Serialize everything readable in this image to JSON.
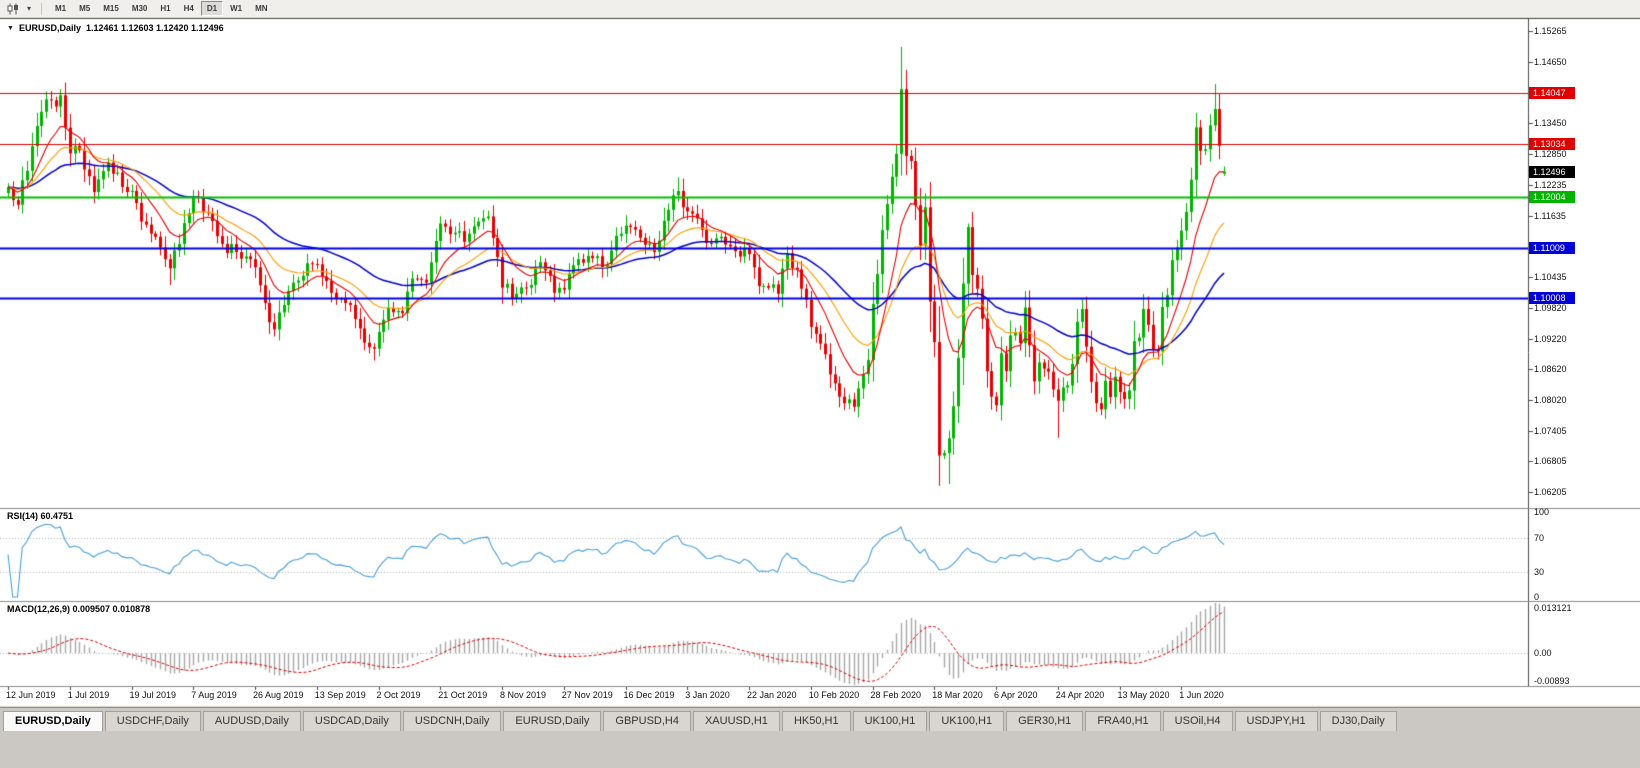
{
  "toolbar": {
    "timeframes": [
      {
        "label": "M1"
      },
      {
        "label": "M5"
      },
      {
        "label": "M15"
      },
      {
        "label": "M30"
      },
      {
        "label": "H1"
      },
      {
        "label": "H4"
      },
      {
        "label": "D1",
        "active": true
      },
      {
        "label": "W1"
      },
      {
        "label": "MN"
      }
    ]
  },
  "chart": {
    "title": {
      "collapse_icon": "▼",
      "symbol": "EURUSD,Daily",
      "ohlc": "1.12461 1.12603 1.12420 1.12496"
    },
    "colors": {
      "bull": "#00b400",
      "bear": "#e60000",
      "macd_hist": "#a8a8a8",
      "macd_signal": "#e00000"
    },
    "scale": {
      "top": 1.155,
      "bottom": 1.0591,
      "ticks": [
        "1.15265",
        "1.14650",
        "1.13450",
        "1.12850",
        "1.12235",
        "1.11635",
        "1.10435",
        "1.09820",
        "1.09220",
        "1.08620",
        "1.08020",
        "1.07405",
        "1.06805",
        "1.06205"
      ]
    },
    "badges": [
      {
        "text": "1.14047",
        "color": "#e00000"
      },
      {
        "text": "1.13034",
        "color": "#e00000"
      },
      {
        "text": "1.12496",
        "color": "#000000"
      },
      {
        "text": "1.12004",
        "color": "#00b400"
      },
      {
        "text": "1.11009",
        "color": "#0000d8"
      },
      {
        "text": "1.10008",
        "color": "#0000d8"
      }
    ],
    "hlines": [
      {
        "price": 1.14047,
        "color": "#e00000",
        "width": 1.2
      },
      {
        "price": 1.13034,
        "color": "#e00000",
        "width": 1.2
      },
      {
        "price": 1.12004,
        "color": "#00c000",
        "width": 2
      },
      {
        "price": 1.11009,
        "color": "#0000e0",
        "width": 2
      },
      {
        "price": 1.10008,
        "color": "#0000e0",
        "width": 2
      }
    ],
    "ma": [
      {
        "period": 45,
        "color": "#0000c8",
        "width": 1.5
      },
      {
        "period": 21,
        "color": "#ff9c00",
        "width": 1.1
      },
      {
        "period": 10,
        "color": "#e60000",
        "width": 1.1
      }
    ],
    "series": {
      "bars": 257,
      "seed": 9,
      "anchors": [
        [
          0,
          1.122
        ],
        [
          2,
          1.1185
        ],
        [
          5,
          1.13
        ],
        [
          8,
          1.1392
        ],
        [
          10,
          1.1378
        ],
        [
          11,
          1.14
        ],
        [
          13,
          1.1286
        ],
        [
          15,
          1.1292
        ],
        [
          18,
          1.121
        ],
        [
          21,
          1.1268
        ],
        [
          24,
          1.122
        ],
        [
          26,
          1.1212
        ],
        [
          28,
          1.1152
        ],
        [
          31,
          1.1122
        ],
        [
          33,
          1.1078
        ],
        [
          34,
          1.106
        ],
        [
          36,
          1.1108
        ],
        [
          39,
          1.12
        ],
        [
          42,
          1.1168
        ],
        [
          45,
          1.1108
        ],
        [
          48,
          1.1092
        ],
        [
          51,
          1.1078
        ],
        [
          52,
          1.1062
        ],
        [
          54,
          1.0992
        ],
        [
          56,
          1.094
        ],
        [
          58,
          1.0988
        ],
        [
          60,
          1.1032
        ],
        [
          63,
          1.107
        ],
        [
          65,
          1.1068
        ],
        [
          68,
          1.1012
        ],
        [
          71,
          1.0992
        ],
        [
          74,
          1.0942
        ],
        [
          76,
          1.0905
        ],
        [
          77,
          1.0902
        ],
        [
          78,
          1.0935
        ],
        [
          80,
          1.0982
        ],
        [
          83,
          1.0972
        ],
        [
          85,
          1.104
        ],
        [
          88,
          1.1032
        ],
        [
          91,
          1.1148
        ],
        [
          94,
          1.113
        ],
        [
          96,
          1.1112
        ],
        [
          99,
          1.1152
        ],
        [
          101,
          1.1162
        ],
        [
          104,
          1.1022
        ],
        [
          107,
          1.101
        ],
        [
          109,
          1.1022
        ],
        [
          112,
          1.1072
        ],
        [
          115,
          1.1012
        ],
        [
          117,
          1.1018
        ],
        [
          120,
          1.1078
        ],
        [
          123,
          1.108
        ],
        [
          125,
          1.1062
        ],
        [
          127,
          1.1095
        ],
        [
          129,
          1.1128
        ],
        [
          130,
          1.1144
        ],
        [
          133,
          1.112
        ],
        [
          136,
          1.1092
        ],
        [
          139,
          1.1175
        ],
        [
          141,
          1.1212
        ],
        [
          143,
          1.1172
        ],
        [
          145,
          1.1158
        ],
        [
          147,
          1.111
        ],
        [
          150,
          1.1122
        ],
        [
          153,
          1.1094
        ],
        [
          156,
          1.1088
        ],
        [
          158,
          1.1025
        ],
        [
          160,
          1.1022
        ],
        [
          162,
          1.101
        ],
        [
          164,
          1.109
        ],
        [
          166,
          1.1058
        ],
        [
          168,
          1.0998
        ],
        [
          169,
          1.0945
        ],
        [
          171,
          1.0912
        ],
        [
          174,
          1.0834
        ],
        [
          176,
          1.0795
        ],
        [
          178,
          1.0788
        ],
        [
          180,
          1.0852
        ],
        [
          181,
          1.088
        ],
        [
          182,
          1.099
        ],
        [
          184,
          1.1135
        ],
        [
          186,
          1.124
        ],
        [
          187,
          1.1285
        ],
        [
          188,
          1.1412
        ],
        [
          189,
          1.1281
        ],
        [
          190,
          1.1271
        ],
        [
          191,
          1.1184
        ],
        [
          192,
          1.1105
        ],
        [
          193,
          1.118
        ],
        [
          194,
          1.0995
        ],
        [
          195,
          1.0915
        ],
        [
          196,
          1.0692
        ],
        [
          197,
          1.0697
        ],
        [
          198,
          1.0726
        ],
        [
          199,
          1.0789
        ],
        [
          200,
          1.0884
        ],
        [
          201,
          1.103
        ],
        [
          202,
          1.1141
        ],
        [
          203,
          1.1047
        ],
        [
          204,
          1.102
        ],
        [
          205,
          1.0961
        ],
        [
          206,
          1.0858
        ],
        [
          207,
          1.0808
        ],
        [
          208,
          1.0791
        ],
        [
          209,
          1.0893
        ],
        [
          210,
          1.0858
        ],
        [
          211,
          1.0928
        ],
        [
          212,
          1.0935
        ],
        [
          213,
          1.0913
        ],
        [
          214,
          1.0983
        ],
        [
          215,
          1.0909
        ],
        [
          216,
          1.0838
        ],
        [
          217,
          1.0875
        ],
        [
          218,
          1.0863
        ],
        [
          219,
          1.0857
        ],
        [
          220,
          1.0822
        ],
        [
          221,
          1.08
        ],
        [
          222,
          1.0826
        ],
        [
          223,
          1.083
        ],
        [
          224,
          1.0872
        ],
        [
          225,
          1.0955
        ],
        [
          226,
          1.098
        ],
        [
          227,
          1.0906
        ],
        [
          228,
          1.0837
        ],
        [
          229,
          1.0795
        ],
        [
          230,
          1.0783
        ],
        [
          231,
          1.0839
        ],
        [
          232,
          1.0807
        ],
        [
          233,
          1.0847
        ],
        [
          234,
          1.0817
        ],
        [
          235,
          1.0803
        ],
        [
          236,
          1.082
        ],
        [
          237,
          1.0917
        ],
        [
          238,
          1.0924
        ],
        [
          239,
          1.098
        ],
        [
          240,
          1.0949
        ],
        [
          241,
          1.0901
        ],
        [
          242,
          1.0897
        ],
        [
          243,
          1.0984
        ],
        [
          244,
          1.1007
        ],
        [
          245,
          1.1076
        ],
        [
          246,
          1.1101
        ],
        [
          247,
          1.1134
        ],
        [
          248,
          1.1171
        ],
        [
          249,
          1.1234
        ],
        [
          250,
          1.1337
        ],
        [
          251,
          1.1291
        ],
        [
          252,
          1.1294
        ],
        [
          253,
          1.1341
        ],
        [
          254,
          1.1373
        ],
        [
          255,
          1.1301
        ],
        [
          256,
          1.12496
        ]
      ],
      "wicks": {
        "11": {
          "h": 1.1412
        },
        "34": {
          "l": 1.1027
        },
        "56": {
          "l": 1.0926
        },
        "77": {
          "l": 1.0879
        },
        "141": {
          "h": 1.1239
        },
        "178": {
          "l": 1.0778
        },
        "188": {
          "h": 1.1495
        },
        "198": {
          "l": 1.0636
        },
        "202": {
          "h": 1.1148
        },
        "221": {
          "l": 1.0727
        },
        "254": {
          "h": 1.1422
        },
        "256": {
          "o": 1.12461,
          "h": 1.12603,
          "l": 1.1242,
          "c": 1.12496
        }
      }
    },
    "dates": [
      "12 Jun 2019",
      "1 Jul 2019",
      "19 Jul 2019",
      "7 Aug 2019",
      "26 Aug 2019",
      "13 Sep 2019",
      "2 Oct 2019",
      "21 Oct 2019",
      "8 Nov 2019",
      "27 Nov 2019",
      "16 Dec 2019",
      "3 Jan 2020",
      "22 Jan 2020",
      "10 Feb 2020",
      "28 Feb 2020",
      "18 Mar 2020",
      "6 Apr 2020",
      "24 Apr 2020",
      "13 May 2020",
      "1 Jun 2020"
    ]
  },
  "rs i_note": "",
  "rsi": {
    "label": "RSI(14) 60.4751",
    "period": 14,
    "color": "#4aa0dc",
    "levels": [
      "100",
      "70",
      "30",
      "0"
    ],
    "level_lines": [
      70,
      30
    ]
  },
  "macd": {
    "label": "MACD(12,26,9) 0.009507 0.010878",
    "fast": 12,
    "slow": 26,
    "signal": 9,
    "scale_labels": [
      "0.013121",
      "0.00",
      "-0.00893"
    ]
  },
  "tabs": [
    {
      "label": "EURUSD,Daily",
      "active": true
    },
    {
      "label": "USDCHF,Daily"
    },
    {
      "label": "AUDUSD,Daily"
    },
    {
      "label": "USDCAD,Daily"
    },
    {
      "label": "USDCNH,Daily"
    },
    {
      "label": "EURUSD,Daily"
    },
    {
      "label": "GBPUSD,H4"
    },
    {
      "label": "XAUUSD,H1"
    },
    {
      "label": "HK50,H1"
    },
    {
      "label": "UK100,H1"
    },
    {
      "label": "UK100,H1"
    },
    {
      "label": "GER30,H1"
    },
    {
      "label": "FRA40,H1"
    },
    {
      "label": "USOil,H4"
    },
    {
      "label": "USDJPY,H1"
    },
    {
      "label": "DJ30,Daily"
    }
  ]
}
